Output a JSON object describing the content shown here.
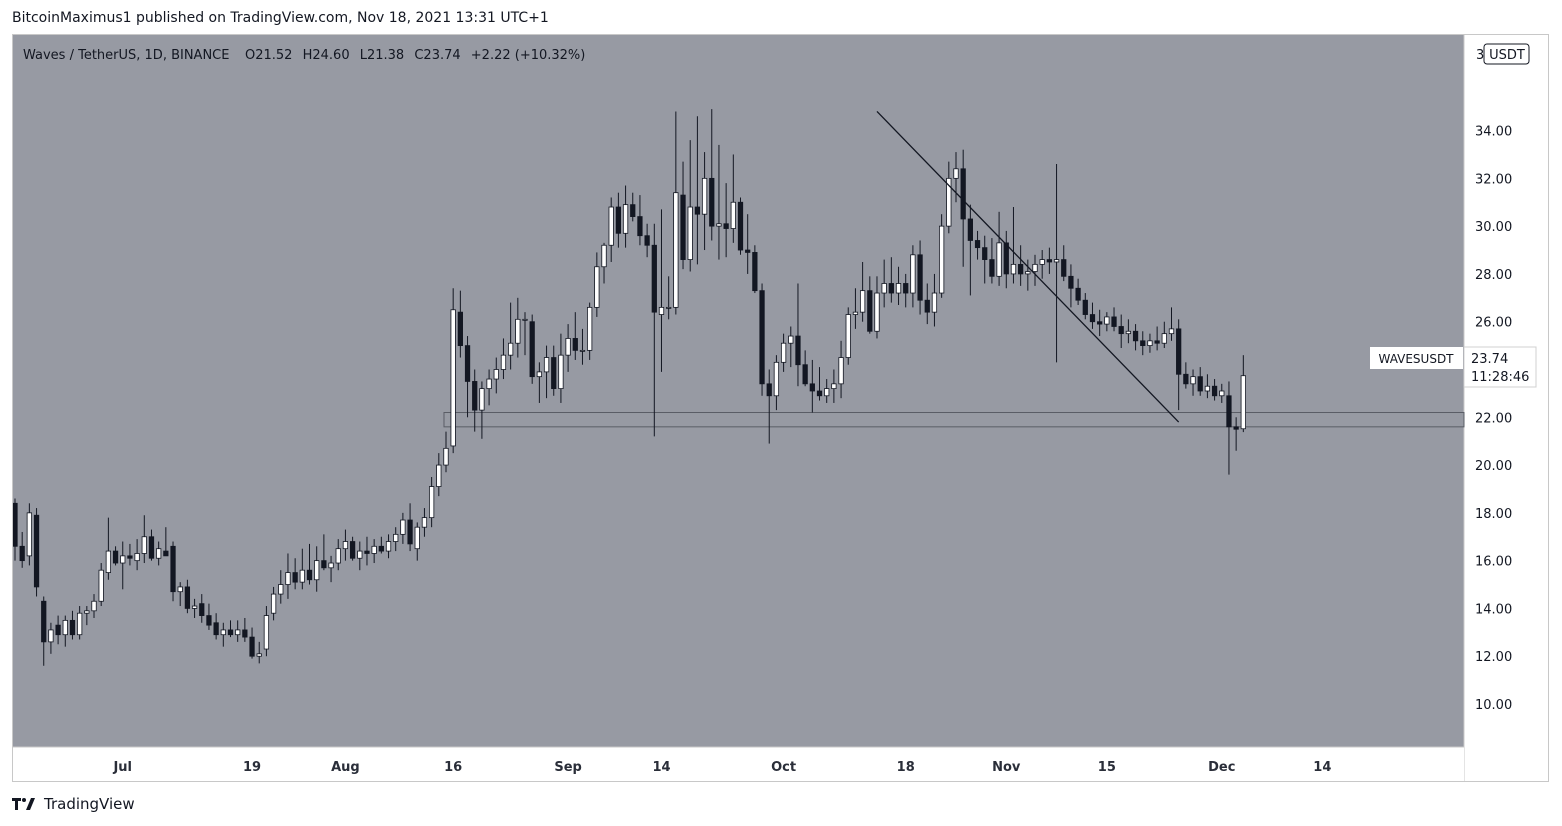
{
  "header": {
    "published_line": "BitcoinMaximus1 published on TradingView.com, Nov 18, 2021 13:31 UTC+1"
  },
  "legend": {
    "symbol_line": "Waves / TetherUS, 1D, BINANCE",
    "o_label": "O",
    "o_value": "21.52",
    "h_label": "H",
    "h_value": "24.60",
    "l_label": "L",
    "l_value": "21.38",
    "c_label": "C",
    "c_value": "23.74",
    "change": "+2.22 (+10.32%)"
  },
  "price_axis": {
    "currency": "USDT",
    "top_label": "3"
  },
  "price_tag": {
    "symbol": "WAVESUSDT",
    "price": "23.74",
    "countdown": "11:28:46"
  },
  "footer": {
    "brand": "TradingView"
  },
  "colors": {
    "background": "#979aa3",
    "up_candle": "#ffffff",
    "down_candle": "#131722",
    "wick": "#131722",
    "trendline": "#131722",
    "support_box_border": "#5a5d66"
  },
  "chart_data": {
    "type": "candlestick",
    "title": "Waves / TetherUS, 1D, BINANCE",
    "ylim": [
      8.2,
      38.0
    ],
    "yticks": [
      10,
      12,
      14,
      16,
      18,
      20,
      22,
      24,
      26,
      28,
      30,
      32,
      34
    ],
    "ytick_labels": [
      "10.00",
      "12.00",
      "14.00",
      "16.00",
      "18.00",
      "20.00",
      "22.00",
      "24.00",
      "26.00",
      "28.00",
      "30.00",
      "32.00",
      "34.00"
    ],
    "x_day_range": [
      0,
      202
    ],
    "x_ticks": [
      {
        "day": 15,
        "label": "Jul"
      },
      {
        "day": 33,
        "label": "19"
      },
      {
        "day": 46,
        "label": "Aug"
      },
      {
        "day": 61,
        "label": "16"
      },
      {
        "day": 77,
        "label": "Sep"
      },
      {
        "day": 90,
        "label": "14"
      },
      {
        "day": 107,
        "label": "Oct"
      },
      {
        "day": 124,
        "label": "18"
      },
      {
        "day": 138,
        "label": "Nov"
      },
      {
        "day": 152,
        "label": "15"
      },
      {
        "day": 168,
        "label": "Dec"
      },
      {
        "day": 182,
        "label": "14"
      }
    ],
    "support_zone": [
      21.6,
      22.2
    ],
    "trendline": {
      "from": {
        "day": 120,
        "price": 34.8
      },
      "to": {
        "day": 162,
        "price": 21.8
      }
    },
    "candles": [
      {
        "o": 18.4,
        "h": 18.6,
        "l": 16.0,
        "c": 16.6
      },
      {
        "o": 16.6,
        "h": 17.2,
        "l": 15.7,
        "c": 16.0
      },
      {
        "o": 16.2,
        "h": 18.4,
        "l": 15.8,
        "c": 18.0
      },
      {
        "o": 17.9,
        "h": 18.2,
        "l": 14.5,
        "c": 14.9
      },
      {
        "o": 14.3,
        "h": 14.5,
        "l": 11.6,
        "c": 12.6
      },
      {
        "o": 12.6,
        "h": 13.4,
        "l": 12.1,
        "c": 13.1
      },
      {
        "o": 13.3,
        "h": 13.7,
        "l": 12.5,
        "c": 12.9
      },
      {
        "o": 12.9,
        "h": 13.7,
        "l": 12.4,
        "c": 13.5
      },
      {
        "o": 13.5,
        "h": 13.9,
        "l": 12.7,
        "c": 12.9
      },
      {
        "o": 12.9,
        "h": 14.1,
        "l": 12.7,
        "c": 13.8
      },
      {
        "o": 13.8,
        "h": 14.1,
        "l": 13.3,
        "c": 13.9
      },
      {
        "o": 13.9,
        "h": 14.6,
        "l": 13.6,
        "c": 14.3
      },
      {
        "o": 14.3,
        "h": 15.9,
        "l": 14.1,
        "c": 15.6
      },
      {
        "o": 15.5,
        "h": 17.8,
        "l": 15.2,
        "c": 16.4
      },
      {
        "o": 16.4,
        "h": 16.6,
        "l": 15.8,
        "c": 15.9
      },
      {
        "o": 15.9,
        "h": 16.8,
        "l": 14.8,
        "c": 16.2
      },
      {
        "o": 16.2,
        "h": 16.7,
        "l": 15.8,
        "c": 16.1
      },
      {
        "o": 16.0,
        "h": 16.9,
        "l": 15.6,
        "c": 16.3
      },
      {
        "o": 16.3,
        "h": 17.9,
        "l": 15.9,
        "c": 17.0
      },
      {
        "o": 17.0,
        "h": 17.3,
        "l": 16.0,
        "c": 16.1
      },
      {
        "o": 16.1,
        "h": 16.8,
        "l": 15.8,
        "c": 16.5
      },
      {
        "o": 16.4,
        "h": 17.4,
        "l": 16.2,
        "c": 16.2
      },
      {
        "o": 16.6,
        "h": 16.8,
        "l": 14.3,
        "c": 14.7
      },
      {
        "o": 14.7,
        "h": 15.1,
        "l": 14.1,
        "c": 14.9
      },
      {
        "o": 14.9,
        "h": 15.2,
        "l": 13.8,
        "c": 14.0
      },
      {
        "o": 14.0,
        "h": 14.4,
        "l": 13.6,
        "c": 14.1
      },
      {
        "o": 14.2,
        "h": 14.6,
        "l": 13.4,
        "c": 13.7
      },
      {
        "o": 13.7,
        "h": 14.2,
        "l": 13.1,
        "c": 13.3
      },
      {
        "o": 13.4,
        "h": 13.8,
        "l": 12.7,
        "c": 12.9
      },
      {
        "o": 12.9,
        "h": 13.4,
        "l": 12.4,
        "c": 13.1
      },
      {
        "o": 13.1,
        "h": 13.5,
        "l": 12.8,
        "c": 12.9
      },
      {
        "o": 12.9,
        "h": 13.5,
        "l": 12.6,
        "c": 13.1
      },
      {
        "o": 13.1,
        "h": 13.6,
        "l": 12.6,
        "c": 12.8
      },
      {
        "o": 12.8,
        "h": 13.2,
        "l": 11.9,
        "c": 12.0
      },
      {
        "o": 12.0,
        "h": 12.6,
        "l": 11.7,
        "c": 12.1
      },
      {
        "o": 12.3,
        "h": 14.1,
        "l": 12.0,
        "c": 13.7
      },
      {
        "o": 13.8,
        "h": 14.9,
        "l": 13.5,
        "c": 14.6
      },
      {
        "o": 14.6,
        "h": 15.6,
        "l": 14.2,
        "c": 15.0
      },
      {
        "o": 15.0,
        "h": 16.3,
        "l": 14.4,
        "c": 15.5
      },
      {
        "o": 15.5,
        "h": 16.1,
        "l": 14.8,
        "c": 15.1
      },
      {
        "o": 15.1,
        "h": 16.5,
        "l": 14.8,
        "c": 15.6
      },
      {
        "o": 15.6,
        "h": 16.7,
        "l": 15.0,
        "c": 15.2
      },
      {
        "o": 15.2,
        "h": 16.6,
        "l": 14.7,
        "c": 16.0
      },
      {
        "o": 16.0,
        "h": 17.1,
        "l": 15.6,
        "c": 15.7
      },
      {
        "o": 15.7,
        "h": 16.2,
        "l": 15.1,
        "c": 15.9
      },
      {
        "o": 15.9,
        "h": 16.9,
        "l": 15.6,
        "c": 16.5
      },
      {
        "o": 16.5,
        "h": 17.3,
        "l": 16.0,
        "c": 16.8
      },
      {
        "o": 16.8,
        "h": 17.0,
        "l": 16.0,
        "c": 16.1
      },
      {
        "o": 16.1,
        "h": 16.8,
        "l": 15.6,
        "c": 16.4
      },
      {
        "o": 16.4,
        "h": 17.0,
        "l": 15.8,
        "c": 16.3
      },
      {
        "o": 16.3,
        "h": 16.9,
        "l": 15.9,
        "c": 16.6
      },
      {
        "o": 16.6,
        "h": 17.0,
        "l": 16.3,
        "c": 16.4
      },
      {
        "o": 16.4,
        "h": 17.1,
        "l": 16.1,
        "c": 16.8
      },
      {
        "o": 16.8,
        "h": 17.4,
        "l": 16.4,
        "c": 17.1
      },
      {
        "o": 17.1,
        "h": 18.0,
        "l": 16.7,
        "c": 17.7
      },
      {
        "o": 17.7,
        "h": 18.4,
        "l": 16.4,
        "c": 16.7
      },
      {
        "o": 16.5,
        "h": 17.6,
        "l": 16.0,
        "c": 17.4
      },
      {
        "o": 17.4,
        "h": 18.2,
        "l": 17.0,
        "c": 17.8
      },
      {
        "o": 17.8,
        "h": 19.5,
        "l": 17.4,
        "c": 19.1
      },
      {
        "o": 19.1,
        "h": 20.5,
        "l": 18.7,
        "c": 20.0
      },
      {
        "o": 20.0,
        "h": 21.4,
        "l": 19.7,
        "c": 20.7
      },
      {
        "o": 20.8,
        "h": 27.4,
        "l": 20.5,
        "c": 26.5
      },
      {
        "o": 26.4,
        "h": 27.3,
        "l": 24.5,
        "c": 25.0
      },
      {
        "o": 25.0,
        "h": 25.4,
        "l": 22.0,
        "c": 23.5
      },
      {
        "o": 23.5,
        "h": 24.0,
        "l": 21.4,
        "c": 22.3
      },
      {
        "o": 22.3,
        "h": 23.5,
        "l": 21.1,
        "c": 23.2
      },
      {
        "o": 23.2,
        "h": 24.0,
        "l": 22.5,
        "c": 23.6
      },
      {
        "o": 23.6,
        "h": 24.5,
        "l": 23.0,
        "c": 24.0
      },
      {
        "o": 24.0,
        "h": 25.3,
        "l": 23.6,
        "c": 24.6
      },
      {
        "o": 24.6,
        "h": 26.8,
        "l": 24.0,
        "c": 25.1
      },
      {
        "o": 25.1,
        "h": 27.0,
        "l": 24.5,
        "c": 26.1
      },
      {
        "o": 26.1,
        "h": 26.4,
        "l": 24.6,
        "c": 26.1
      },
      {
        "o": 26.0,
        "h": 26.3,
        "l": 23.4,
        "c": 23.7
      },
      {
        "o": 23.7,
        "h": 24.3,
        "l": 22.6,
        "c": 23.9
      },
      {
        "o": 23.9,
        "h": 25.0,
        "l": 22.8,
        "c": 24.5
      },
      {
        "o": 24.5,
        "h": 25.0,
        "l": 22.9,
        "c": 23.2
      },
      {
        "o": 23.2,
        "h": 25.5,
        "l": 22.6,
        "c": 24.6
      },
      {
        "o": 24.6,
        "h": 25.9,
        "l": 23.9,
        "c": 25.3
      },
      {
        "o": 25.3,
        "h": 26.4,
        "l": 24.4,
        "c": 24.8
      },
      {
        "o": 24.8,
        "h": 25.7,
        "l": 24.2,
        "c": 24.8
      },
      {
        "o": 24.8,
        "h": 26.8,
        "l": 24.4,
        "c": 26.6
      },
      {
        "o": 26.6,
        "h": 28.9,
        "l": 26.2,
        "c": 28.3
      },
      {
        "o": 28.3,
        "h": 29.3,
        "l": 27.6,
        "c": 29.2
      },
      {
        "o": 29.2,
        "h": 31.2,
        "l": 28.5,
        "c": 30.8
      },
      {
        "o": 30.8,
        "h": 31.4,
        "l": 29.1,
        "c": 29.7
      },
      {
        "o": 29.7,
        "h": 31.7,
        "l": 29.1,
        "c": 30.9
      },
      {
        "o": 30.9,
        "h": 31.4,
        "l": 30.2,
        "c": 30.4
      },
      {
        "o": 30.4,
        "h": 31.3,
        "l": 29.2,
        "c": 29.6
      },
      {
        "o": 29.6,
        "h": 30.1,
        "l": 28.7,
        "c": 29.2
      },
      {
        "o": 29.2,
        "h": 30.1,
        "l": 21.2,
        "c": 26.4
      },
      {
        "o": 26.3,
        "h": 30.7,
        "l": 23.9,
        "c": 26.6
      },
      {
        "o": 26.6,
        "h": 27.9,
        "l": 26.1,
        "c": 26.6
      },
      {
        "o": 26.6,
        "h": 34.8,
        "l": 26.3,
        "c": 31.4
      },
      {
        "o": 31.3,
        "h": 32.7,
        "l": 28.2,
        "c": 28.6
      },
      {
        "o": 28.6,
        "h": 33.6,
        "l": 28.1,
        "c": 30.8
      },
      {
        "o": 30.8,
        "h": 34.6,
        "l": 28.4,
        "c": 30.5
      },
      {
        "o": 30.5,
        "h": 33.1,
        "l": 29.0,
        "c": 32.0
      },
      {
        "o": 32.0,
        "h": 34.9,
        "l": 29.4,
        "c": 30.0
      },
      {
        "o": 30.0,
        "h": 33.4,
        "l": 28.6,
        "c": 30.1
      },
      {
        "o": 30.1,
        "h": 31.8,
        "l": 28.7,
        "c": 29.9
      },
      {
        "o": 29.9,
        "h": 33.0,
        "l": 29.3,
        "c": 31.0
      },
      {
        "o": 31.0,
        "h": 31.2,
        "l": 28.8,
        "c": 29.0
      },
      {
        "o": 29.0,
        "h": 30.5,
        "l": 28.0,
        "c": 28.9
      },
      {
        "o": 28.9,
        "h": 29.2,
        "l": 27.2,
        "c": 27.3
      },
      {
        "o": 27.3,
        "h": 27.6,
        "l": 22.9,
        "c": 23.4
      },
      {
        "o": 23.4,
        "h": 24.0,
        "l": 20.9,
        "c": 22.9
      },
      {
        "o": 22.9,
        "h": 24.6,
        "l": 22.3,
        "c": 24.3
      },
      {
        "o": 24.3,
        "h": 25.5,
        "l": 23.9,
        "c": 25.1
      },
      {
        "o": 25.1,
        "h": 25.8,
        "l": 24.1,
        "c": 25.4
      },
      {
        "o": 25.4,
        "h": 27.6,
        "l": 23.3,
        "c": 24.2
      },
      {
        "o": 24.2,
        "h": 24.8,
        "l": 23.3,
        "c": 23.4
      },
      {
        "o": 23.4,
        "h": 24.4,
        "l": 22.2,
        "c": 23.1
      },
      {
        "o": 23.1,
        "h": 24.1,
        "l": 22.7,
        "c": 22.9
      },
      {
        "o": 22.9,
        "h": 23.6,
        "l": 22.6,
        "c": 23.2
      },
      {
        "o": 23.2,
        "h": 24.0,
        "l": 22.6,
        "c": 23.4
      },
      {
        "o": 23.4,
        "h": 25.2,
        "l": 22.8,
        "c": 24.5
      },
      {
        "o": 24.5,
        "h": 26.6,
        "l": 24.2,
        "c": 26.3
      },
      {
        "o": 26.3,
        "h": 27.4,
        "l": 25.7,
        "c": 26.4
      },
      {
        "o": 26.4,
        "h": 28.5,
        "l": 26.0,
        "c": 27.3
      },
      {
        "o": 27.3,
        "h": 27.9,
        "l": 25.5,
        "c": 25.6
      },
      {
        "o": 25.6,
        "h": 27.9,
        "l": 25.3,
        "c": 27.2
      },
      {
        "o": 27.2,
        "h": 28.6,
        "l": 26.6,
        "c": 27.6
      },
      {
        "o": 27.6,
        "h": 28.7,
        "l": 26.8,
        "c": 27.2
      },
      {
        "o": 27.2,
        "h": 28.3,
        "l": 26.7,
        "c": 27.6
      },
      {
        "o": 27.6,
        "h": 28.0,
        "l": 26.6,
        "c": 27.2
      },
      {
        "o": 27.2,
        "h": 29.2,
        "l": 26.6,
        "c": 28.8
      },
      {
        "o": 28.8,
        "h": 29.4,
        "l": 26.3,
        "c": 26.9
      },
      {
        "o": 26.9,
        "h": 27.6,
        "l": 25.9,
        "c": 26.4
      },
      {
        "o": 26.4,
        "h": 28.0,
        "l": 25.8,
        "c": 27.2
      },
      {
        "o": 27.2,
        "h": 30.5,
        "l": 27.0,
        "c": 30.0
      },
      {
        "o": 30.0,
        "h": 32.7,
        "l": 29.7,
        "c": 32.0
      },
      {
        "o": 32.0,
        "h": 33.1,
        "l": 31.0,
        "c": 32.4
      },
      {
        "o": 32.4,
        "h": 33.2,
        "l": 28.3,
        "c": 30.3
      },
      {
        "o": 30.3,
        "h": 30.9,
        "l": 27.1,
        "c": 29.4
      },
      {
        "o": 29.4,
        "h": 29.8,
        "l": 28.6,
        "c": 29.1
      },
      {
        "o": 29.1,
        "h": 29.6,
        "l": 27.6,
        "c": 28.6
      },
      {
        "o": 28.6,
        "h": 29.5,
        "l": 27.6,
        "c": 27.9
      },
      {
        "o": 27.9,
        "h": 30.6,
        "l": 27.5,
        "c": 29.3
      },
      {
        "o": 29.3,
        "h": 29.8,
        "l": 27.4,
        "c": 28.0
      },
      {
        "o": 28.0,
        "h": 30.8,
        "l": 27.6,
        "c": 28.4
      },
      {
        "o": 28.4,
        "h": 29.2,
        "l": 27.5,
        "c": 28.0
      },
      {
        "o": 28.0,
        "h": 28.6,
        "l": 27.3,
        "c": 28.1
      },
      {
        "o": 28.1,
        "h": 28.8,
        "l": 27.5,
        "c": 28.4
      },
      {
        "o": 28.4,
        "h": 29.0,
        "l": 27.8,
        "c": 28.6
      },
      {
        "o": 28.6,
        "h": 29.1,
        "l": 28.0,
        "c": 28.5
      },
      {
        "o": 28.5,
        "h": 32.6,
        "l": 24.3,
        "c": 28.6
      },
      {
        "o": 28.6,
        "h": 29.2,
        "l": 27.7,
        "c": 27.9
      },
      {
        "o": 27.9,
        "h": 28.4,
        "l": 26.6,
        "c": 27.4
      },
      {
        "o": 27.4,
        "h": 27.8,
        "l": 26.7,
        "c": 26.9
      },
      {
        "o": 26.9,
        "h": 27.2,
        "l": 26.1,
        "c": 26.3
      },
      {
        "o": 26.3,
        "h": 26.8,
        "l": 25.7,
        "c": 26.0
      },
      {
        "o": 26.0,
        "h": 26.5,
        "l": 25.4,
        "c": 25.9
      },
      {
        "o": 25.9,
        "h": 26.4,
        "l": 25.6,
        "c": 26.2
      },
      {
        "o": 26.2,
        "h": 26.6,
        "l": 25.6,
        "c": 25.8
      },
      {
        "o": 25.8,
        "h": 26.3,
        "l": 24.9,
        "c": 25.5
      },
      {
        "o": 25.5,
        "h": 26.1,
        "l": 25.1,
        "c": 25.6
      },
      {
        "o": 25.6,
        "h": 25.9,
        "l": 24.8,
        "c": 25.2
      },
      {
        "o": 25.2,
        "h": 25.6,
        "l": 24.6,
        "c": 25.0
      },
      {
        "o": 25.0,
        "h": 25.5,
        "l": 24.7,
        "c": 25.2
      },
      {
        "o": 25.2,
        "h": 25.8,
        "l": 24.8,
        "c": 25.1
      },
      {
        "o": 25.1,
        "h": 26.0,
        "l": 24.9,
        "c": 25.5
      },
      {
        "o": 25.5,
        "h": 26.6,
        "l": 25.2,
        "c": 25.7
      },
      {
        "o": 25.7,
        "h": 26.1,
        "l": 22.3,
        "c": 23.8
      },
      {
        "o": 23.8,
        "h": 24.3,
        "l": 23.2,
        "c": 23.4
      },
      {
        "o": 23.4,
        "h": 24.0,
        "l": 22.9,
        "c": 23.7
      },
      {
        "o": 23.7,
        "h": 24.1,
        "l": 22.9,
        "c": 23.1
      },
      {
        "o": 23.1,
        "h": 23.8,
        "l": 22.8,
        "c": 23.3
      },
      {
        "o": 23.3,
        "h": 23.6,
        "l": 22.7,
        "c": 22.9
      },
      {
        "o": 22.9,
        "h": 23.4,
        "l": 22.6,
        "c": 23.1
      },
      {
        "o": 22.9,
        "h": 23.5,
        "l": 19.6,
        "c": 21.6
      },
      {
        "o": 21.6,
        "h": 22.0,
        "l": 20.6,
        "c": 21.5
      },
      {
        "o": 21.52,
        "h": 24.6,
        "l": 21.38,
        "c": 23.74
      }
    ]
  }
}
